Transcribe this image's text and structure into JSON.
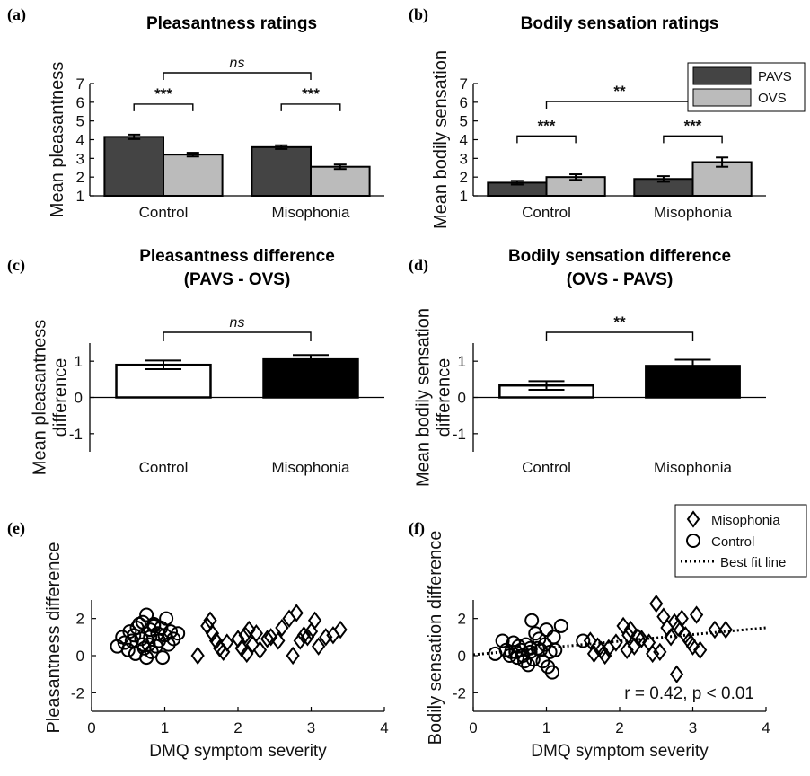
{
  "chart_data": [
    {
      "panel": "(a)",
      "type": "bar",
      "title": "Pleasantness ratings",
      "ylabel": "Mean pleasantness",
      "categories": [
        "Control",
        "Misophonia"
      ],
      "ylim": [
        1,
        7
      ],
      "yticks": [
        "1",
        "2",
        "3",
        "4",
        "5",
        "6",
        "7"
      ],
      "series": [
        {
          "values": [
            4.15,
            3.6
          ],
          "errors": [
            0.12,
            0.1
          ],
          "color": "#444444"
        },
        {
          "values": [
            3.2,
            2.55
          ],
          "errors": [
            0.1,
            0.12
          ],
          "color": "#bbbbbb"
        }
      ],
      "sig_within": [
        "***",
        "***"
      ],
      "sig_between": "ns"
    },
    {
      "panel": "(b)",
      "type": "bar",
      "title": "Bodily sensation ratings",
      "ylabel": "Mean bodily sensation",
      "categories": [
        "Control",
        "Misophonia"
      ],
      "ylim": [
        1,
        7
      ],
      "yticks": [
        "1",
        "2",
        "3",
        "4",
        "5",
        "6",
        "7"
      ],
      "series": [
        {
          "name": "PAVS",
          "values": [
            1.7,
            1.9
          ],
          "errors": [
            0.1,
            0.15
          ],
          "color": "#444444"
        },
        {
          "name": "OVS",
          "values": [
            2.0,
            2.8
          ],
          "errors": [
            0.15,
            0.25
          ],
          "color": "#bbbbbb"
        }
      ],
      "legend": "top-right",
      "sig_within": [
        "***",
        "***"
      ],
      "sig_between": "**"
    },
    {
      "panel": "(c)",
      "type": "bar",
      "title": "Pleasantness difference",
      "subtitle": "(PAVS - OVS)",
      "ylabel": [
        "Mean pleasantness",
        "difference"
      ],
      "categories": [
        "Control",
        "Misophonia"
      ],
      "ylim": [
        -1.5,
        1.5
      ],
      "yticks": [
        "1",
        "0",
        "-1"
      ],
      "values": [
        0.9,
        1.05
      ],
      "errors": [
        0.12,
        0.12
      ],
      "colors": [
        "#ffffff",
        "#000000"
      ],
      "sig_between": "ns"
    },
    {
      "panel": "(d)",
      "type": "bar",
      "title": "Bodily sensation difference",
      "subtitle": "(OVS - PAVS)",
      "ylabel": [
        "Mean bodily sensation",
        "difference"
      ],
      "categories": [
        "Control",
        "Misophonia"
      ],
      "ylim": [
        -1.5,
        1.5
      ],
      "yticks": [
        "1",
        "0",
        "-1"
      ],
      "values": [
        0.33,
        0.87
      ],
      "errors": [
        0.12,
        0.17
      ],
      "colors": [
        "#ffffff",
        "#000000"
      ],
      "sig_between": "**"
    },
    {
      "panel": "(e)",
      "type": "scatter",
      "xlabel": "DMQ symptom severity",
      "ylabel": "Pleasantness difference",
      "xlim": [
        0,
        4
      ],
      "ylim": [
        -3,
        3
      ],
      "xticks": [
        "0",
        "1",
        "2",
        "3",
        "4"
      ],
      "yticks": [
        "2",
        "0",
        "-2"
      ],
      "series": [
        {
          "marker": "circle",
          "x": [
            0.35,
            0.42,
            0.45,
            0.5,
            0.52,
            0.55,
            0.6,
            0.62,
            0.65,
            0.68,
            0.7,
            0.72,
            0.75,
            0.75,
            0.78,
            0.8,
            0.8,
            0.82,
            0.85,
            0.88,
            0.9,
            0.92,
            0.95,
            0.97,
            1.0,
            1.02,
            1.05,
            1.08,
            1.12,
            1.18,
            0.58,
            0.7,
            0.85
          ],
          "y": [
            0.5,
            1.0,
            0.7,
            0.3,
            1.3,
            0.8,
            0.1,
            1.5,
            1.7,
            0.9,
            1.8,
            0.4,
            2.2,
            -0.1,
            0.6,
            1.4,
            1.0,
            0.2,
            1.7,
            0.5,
            1.2,
            0.8,
            1.5,
            -0.1,
            1.1,
            2.0,
            0.6,
            1.3,
            0.9,
            1.2,
            1.1,
            0.6,
            1.6
          ]
        },
        {
          "marker": "diamond",
          "x": [
            1.45,
            1.58,
            1.62,
            1.65,
            1.7,
            1.75,
            1.8,
            1.85,
            2.0,
            2.05,
            2.1,
            2.12,
            2.15,
            2.2,
            2.25,
            2.3,
            2.4,
            2.45,
            2.55,
            2.6,
            2.7,
            2.75,
            2.8,
            2.85,
            2.9,
            2.95,
            3.0,
            3.05,
            3.1,
            3.2,
            3.3,
            3.4
          ],
          "y": [
            0.0,
            1.6,
            1.9,
            1.2,
            0.8,
            0.4,
            0.2,
            0.7,
            0.9,
            0.4,
            1.1,
            0.1,
            1.4,
            0.6,
            1.2,
            0.3,
            0.9,
            1.0,
            0.8,
            1.5,
            2.0,
            0.0,
            2.3,
            0.8,
            1.1,
            1.0,
            1.3,
            1.9,
            0.5,
            1.0,
            1.1,
            1.4
          ]
        }
      ]
    },
    {
      "panel": "(f)",
      "type": "scatter",
      "xlabel": "DMQ symptom severity",
      "ylabel": "Bodily sensation difference",
      "xlim": [
        0,
        4
      ],
      "ylim": [
        -3,
        3
      ],
      "xticks": [
        "0",
        "1",
        "2",
        "3",
        "4"
      ],
      "yticks": [
        "2",
        "0",
        "-2"
      ],
      "annotation": "r = 0.42, p < 0.01",
      "legend": "top-right",
      "legend_entries": {
        "misophonia": "Misophonia",
        "control": "Control",
        "fit": "Best fit line"
      },
      "fit_line": {
        "x": [
          0,
          4
        ],
        "y": [
          0.05,
          1.5
        ]
      },
      "series": [
        {
          "marker": "circle",
          "x": [
            0.3,
            0.4,
            0.45,
            0.5,
            0.55,
            0.58,
            0.6,
            0.62,
            0.65,
            0.68,
            0.7,
            0.72,
            0.75,
            0.78,
            0.8,
            0.82,
            0.85,
            0.88,
            0.9,
            0.92,
            0.95,
            0.98,
            1.0,
            1.02,
            1.05,
            1.08,
            1.1,
            1.12,
            1.2,
            1.5,
            0.78,
            0.52
          ],
          "y": [
            0.1,
            0.8,
            0.3,
            0.0,
            0.7,
            0.2,
            -0.1,
            0.5,
            0.3,
            0.0,
            -0.3,
            0.6,
            -0.5,
            0.2,
            1.9,
            -0.2,
            1.2,
            0.4,
            0.9,
            0.3,
            -0.3,
            0.6,
            1.4,
            -0.6,
            0.2,
            -0.9,
            1.0,
            0.3,
            1.6,
            0.8,
            0.4,
            0.2
          ]
        },
        {
          "marker": "diamond",
          "x": [
            1.6,
            1.65,
            1.7,
            1.75,
            1.8,
            1.85,
            1.95,
            2.05,
            2.1,
            2.12,
            2.15,
            2.2,
            2.25,
            2.3,
            2.4,
            2.45,
            2.5,
            2.55,
            2.6,
            2.65,
            2.7,
            2.75,
            2.8,
            2.85,
            2.9,
            2.95,
            3.0,
            3.05,
            3.1,
            3.3,
            3.45,
            2.78
          ],
          "y": [
            0.8,
            0.1,
            0.5,
            0.3,
            0.0,
            0.4,
            0.7,
            1.6,
            0.3,
            1.1,
            1.4,
            0.5,
            1.0,
            0.9,
            0.7,
            0.1,
            2.8,
            0.2,
            2.1,
            1.5,
            1.0,
            1.8,
            1.5,
            2.0,
            1.1,
            0.8,
            0.5,
            2.2,
            0.3,
            1.4,
            1.4,
            -1.0
          ]
        }
      ]
    }
  ]
}
